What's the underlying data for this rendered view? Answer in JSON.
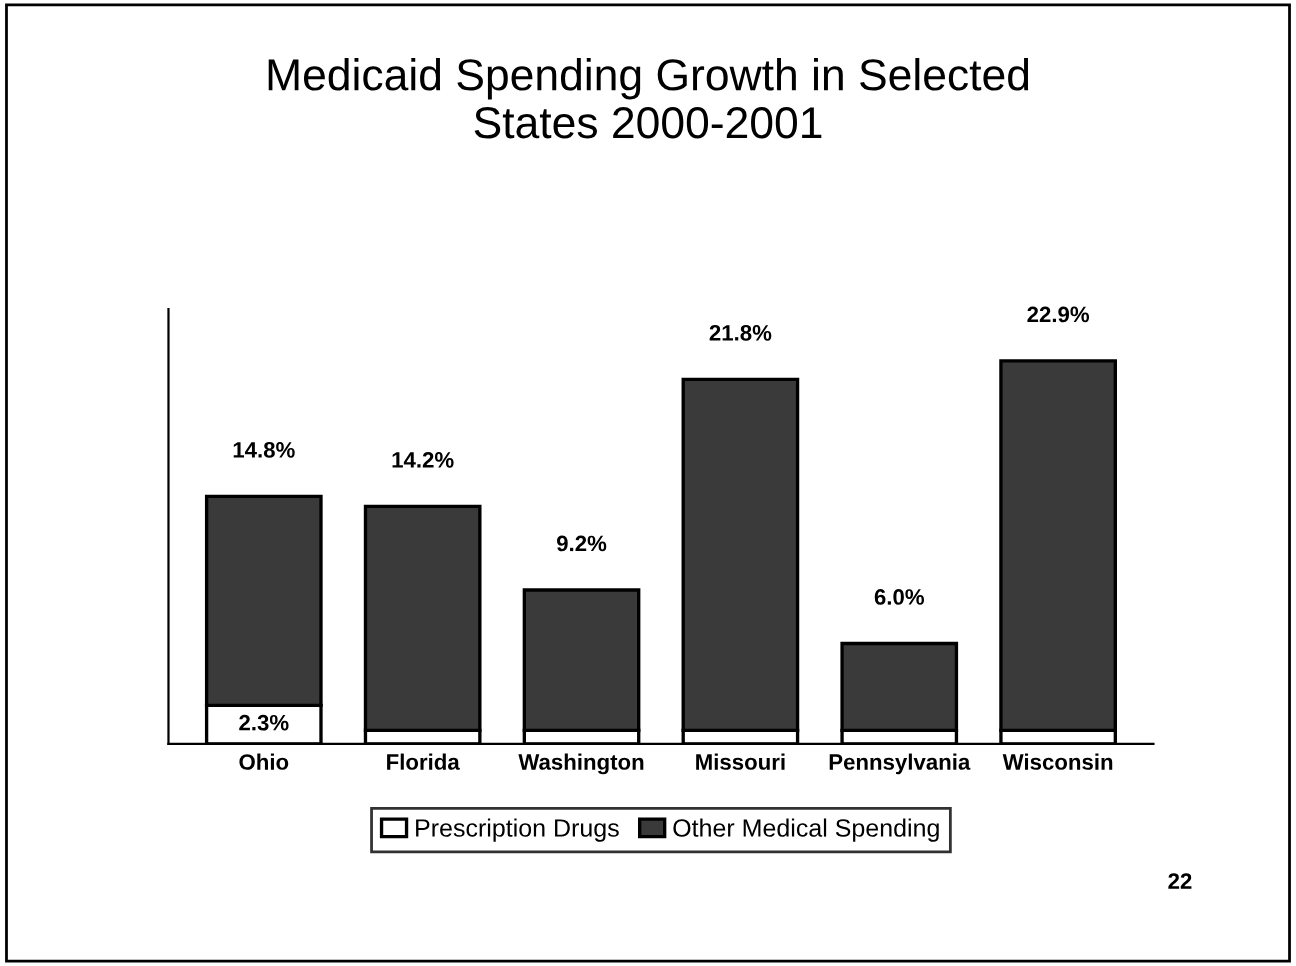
{
  "chart_data": {
    "type": "bar",
    "title": "Medicaid Spending Growth in Selected\nStates 2000-2001",
    "categories": [
      "Ohio",
      "Florida",
      "Washington",
      "Missouri",
      "Pennsylvania",
      "Wisconsin"
    ],
    "stacked": true,
    "series": [
      {
        "name": "Prescription Drugs",
        "color": "#ffffff",
        "values": [
          2.3,
          0.8,
          0.8,
          0.8,
          0.8,
          0.8
        ],
        "value_labels": [
          "2.3%",
          null,
          null,
          null,
          null,
          null
        ]
      },
      {
        "name": "Other Medical Spending",
        "color": "#3a3a3a",
        "values": [
          12.5,
          13.4,
          8.4,
          21.0,
          5.2,
          22.1
        ]
      }
    ],
    "totals": [
      "14.8%",
      "14.2%",
      "9.2%",
      "21.8%",
      "6.0%",
      "22.9%"
    ],
    "ylim": [
      0,
      26
    ],
    "tick_labels": "x",
    "grid": false,
    "legend": "bottom",
    "annotations": [
      "22"
    ]
  }
}
